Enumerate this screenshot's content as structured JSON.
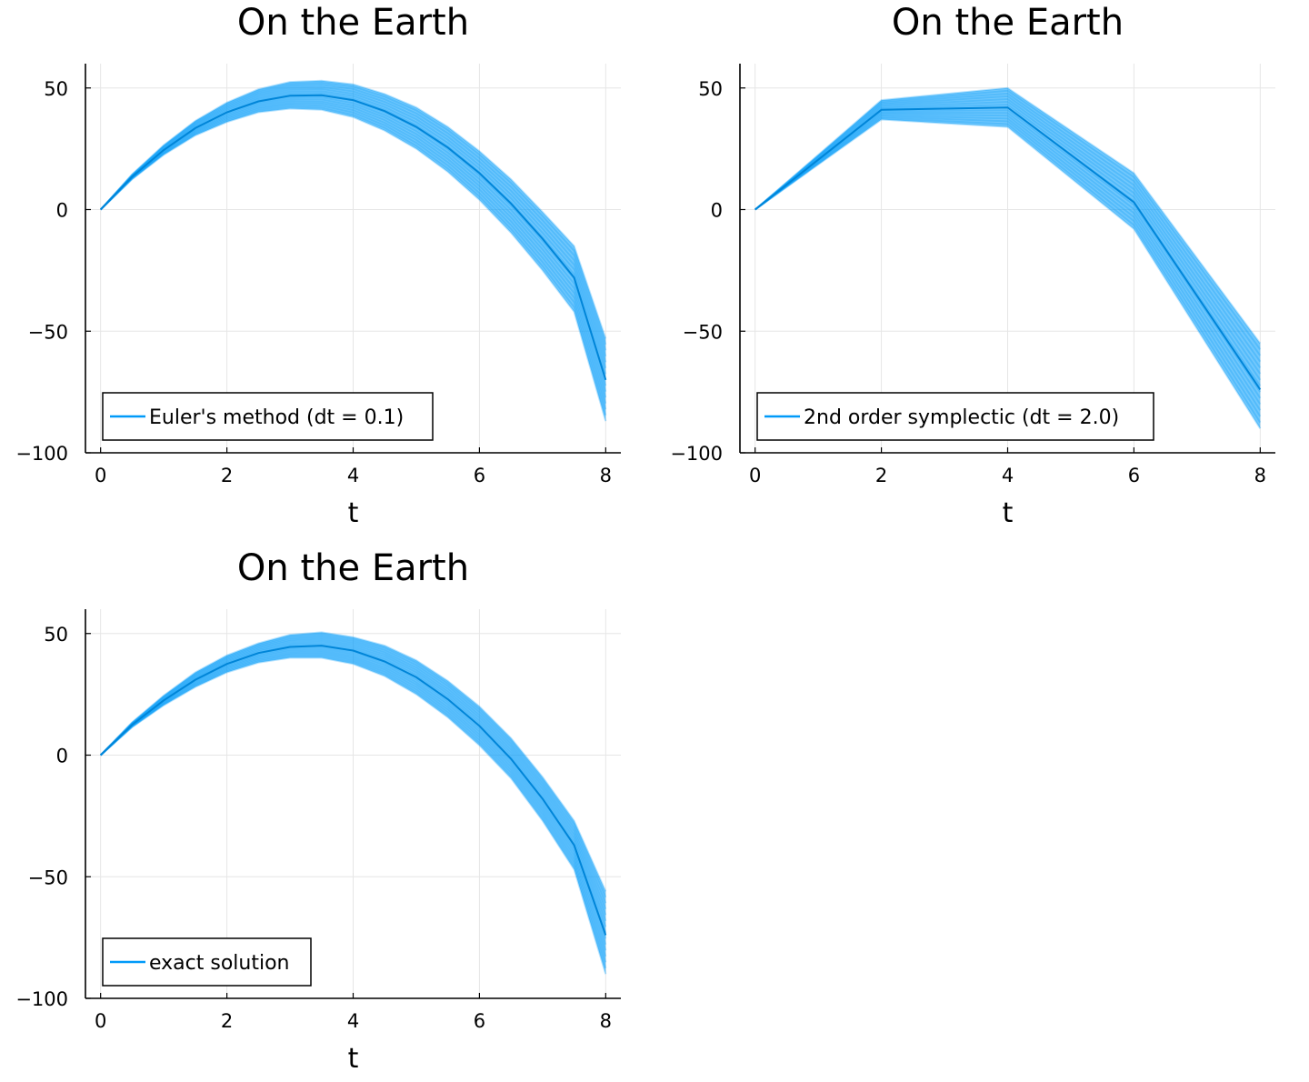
{
  "chart_data": [
    {
      "type": "line",
      "title": "On the Earth",
      "xlabel": "t",
      "ylabel": "",
      "xlim": [
        -0.24,
        8.24
      ],
      "ylim": [
        -100,
        60
      ],
      "xticks": [
        0,
        2,
        4,
        6,
        8
      ],
      "yticks": [
        50,
        0,
        -50,
        -100
      ],
      "grid": true,
      "legend_position": "bottom-left",
      "series_color": "#009af9",
      "series": [
        {
          "name": "Euler's method (dt = 0.1)",
          "x": [
            0,
            0.5,
            1,
            1.5,
            2,
            2.5,
            3,
            3.5,
            4,
            4.5,
            5,
            5.5,
            6,
            6.5,
            7,
            7.5,
            8
          ],
          "values": [
            0,
            13.5,
            24.5,
            33.5,
            40,
            44.5,
            46.8,
            47,
            45,
            40.5,
            34,
            25.5,
            15,
            2.5,
            -12,
            -28,
            -70
          ],
          "band_lower": [
            0,
            12.5,
            22.5,
            30.5,
            36,
            40,
            41.5,
            41,
            38,
            32.5,
            25,
            15.5,
            4,
            -9.5,
            -25,
            -42,
            -87
          ],
          "band_upper": [
            0,
            14.5,
            26.5,
            36.5,
            44,
            49.5,
            52.5,
            53,
            51.5,
            47.5,
            42,
            34,
            24,
            12.5,
            -1,
            -15,
            -53
          ]
        }
      ]
    },
    {
      "type": "line",
      "title": "On the Earth",
      "xlabel": "t",
      "ylabel": "",
      "xlim": [
        -0.24,
        8.24
      ],
      "ylim": [
        -100,
        60
      ],
      "xticks": [
        0,
        2,
        4,
        6,
        8
      ],
      "yticks": [
        50,
        0,
        -50,
        -100
      ],
      "grid": true,
      "legend_position": "bottom-left",
      "series_color": "#009af9",
      "series": [
        {
          "name": "2nd order symplectic (dt = 2.0)",
          "x": [
            0,
            2,
            4,
            6,
            8
          ],
          "values": [
            0,
            41,
            42,
            3,
            -74
          ],
          "band_lower": [
            0,
            37,
            34,
            -8,
            -90
          ],
          "band_upper": [
            0,
            45,
            50,
            15,
            -55
          ]
        }
      ]
    },
    {
      "type": "line",
      "title": "On the Earth",
      "xlabel": "t",
      "ylabel": "",
      "xlim": [
        -0.24,
        8.24
      ],
      "ylim": [
        -100,
        60
      ],
      "xticks": [
        0,
        2,
        4,
        6,
        8
      ],
      "yticks": [
        50,
        0,
        -50,
        -100
      ],
      "grid": true,
      "legend_position": "bottom-left",
      "series_color": "#009af9",
      "series": [
        {
          "name": "exact solution",
          "x": [
            0,
            0.5,
            1,
            1.5,
            2,
            2.5,
            3,
            3.5,
            4,
            4.5,
            5,
            5.5,
            6,
            6.5,
            7,
            7.5,
            8
          ],
          "values": [
            0,
            12.5,
            22.5,
            31,
            37.5,
            42,
            44.5,
            45,
            43,
            38.5,
            32,
            23,
            12,
            -1.5,
            -18,
            -37,
            -74
          ],
          "band_lower": [
            0,
            11.5,
            20.5,
            28,
            34,
            38,
            40,
            40,
            37.5,
            32.5,
            25,
            15.5,
            4,
            -9.5,
            -27,
            -47,
            -90
          ],
          "band_upper": [
            0,
            13.5,
            24.5,
            34,
            41,
            46,
            49.5,
            50.5,
            48.5,
            45,
            39,
            30.5,
            20,
            7,
            -9,
            -27,
            -56
          ]
        }
      ]
    }
  ]
}
